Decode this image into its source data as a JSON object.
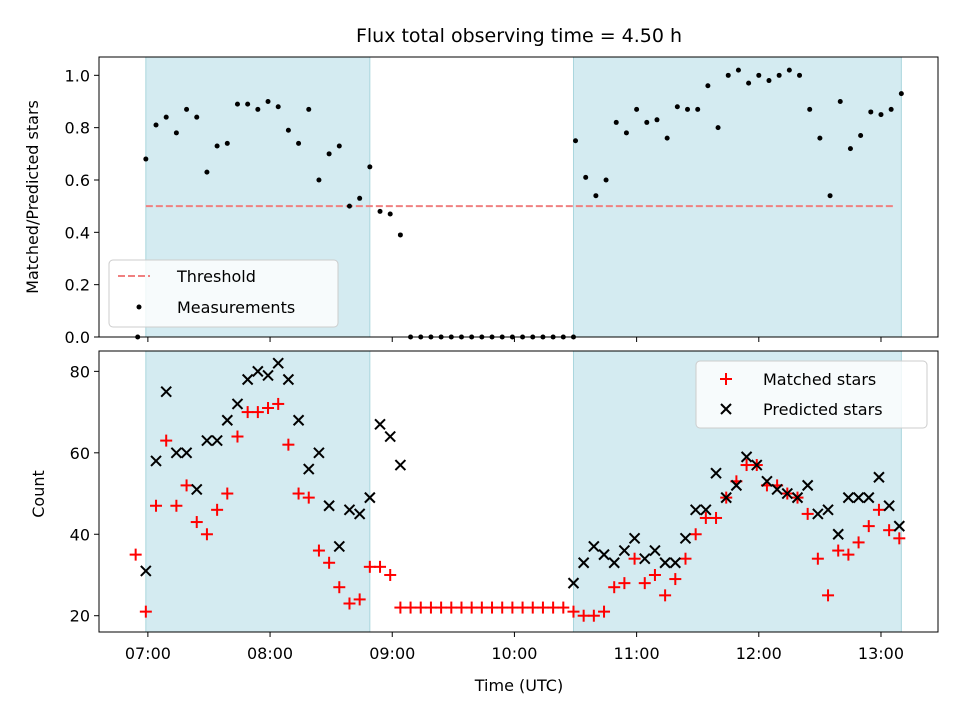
{
  "chart_data": [
    {
      "type": "scatter",
      "title": "Flux total observing time = 4.50 h",
      "xlabel": "",
      "ylabel": "Matched/Predicted stars",
      "xlim": [
        "06:36",
        "13:28"
      ],
      "ylim": [
        0,
        1.07
      ],
      "y_ticks": [
        "0.0",
        "0.2",
        "0.4",
        "0.6",
        "0.8",
        "1.0"
      ],
      "y_tick_values": [
        0,
        0.2,
        0.4,
        0.6,
        0.8,
        1.0
      ],
      "grid": false,
      "legend_position": "lower-left",
      "shaded_intervals": [
        [
          "06:59",
          "08:49"
        ],
        [
          "10:29",
          "13:10"
        ]
      ],
      "threshold": {
        "name": "Threshold",
        "y": 0.5,
        "x_range": [
          "06:59",
          "13:07"
        ],
        "color": "#f08080",
        "style": "dashed"
      },
      "series": [
        {
          "name": "Measurements",
          "marker": "dot",
          "color": "#000000",
          "points": [
            [
              "06:55",
              0.0
            ],
            [
              "06:59",
              0.68
            ],
            [
              "07:04",
              0.81
            ],
            [
              "07:09",
              0.84
            ],
            [
              "07:14",
              0.78
            ],
            [
              "07:19",
              0.87
            ],
            [
              "07:24",
              0.84
            ],
            [
              "07:29",
              0.63
            ],
            [
              "07:34",
              0.73
            ],
            [
              "07:39",
              0.74
            ],
            [
              "07:44",
              0.89
            ],
            [
              "07:49",
              0.89
            ],
            [
              "07:54",
              0.87
            ],
            [
              "07:59",
              0.9
            ],
            [
              "08:04",
              0.88
            ],
            [
              "08:09",
              0.79
            ],
            [
              "08:14",
              0.74
            ],
            [
              "08:19",
              0.87
            ],
            [
              "08:24",
              0.6
            ],
            [
              "08:29",
              0.7
            ],
            [
              "08:34",
              0.73
            ],
            [
              "08:39",
              0.5
            ],
            [
              "08:44",
              0.53
            ],
            [
              "08:49",
              0.65
            ],
            [
              "08:54",
              0.48
            ],
            [
              "08:59",
              0.47
            ],
            [
              "09:04",
              0.39
            ],
            [
              "09:09",
              0.0
            ],
            [
              "09:14",
              0.0
            ],
            [
              "09:19",
              0.0
            ],
            [
              "09:24",
              0.0
            ],
            [
              "09:29",
              0.0
            ],
            [
              "09:34",
              0.0
            ],
            [
              "09:39",
              0.0
            ],
            [
              "09:44",
              0.0
            ],
            [
              "09:49",
              0.0
            ],
            [
              "09:54",
              0.0
            ],
            [
              "09:59",
              0.0
            ],
            [
              "10:04",
              0.0
            ],
            [
              "10:09",
              0.0
            ],
            [
              "10:14",
              0.0
            ],
            [
              "10:19",
              0.0
            ],
            [
              "10:24",
              0.0
            ],
            [
              "10:29",
              0.0
            ],
            [
              "10:30",
              0.75
            ],
            [
              "10:35",
              0.61
            ],
            [
              "10:40",
              0.54
            ],
            [
              "10:45",
              0.6
            ],
            [
              "10:50",
              0.82
            ],
            [
              "10:55",
              0.78
            ],
            [
              "11:00",
              0.87
            ],
            [
              "11:05",
              0.82
            ],
            [
              "11:10",
              0.83
            ],
            [
              "11:15",
              0.76
            ],
            [
              "11:20",
              0.88
            ],
            [
              "11:25",
              0.87
            ],
            [
              "11:30",
              0.87
            ],
            [
              "11:35",
              0.96
            ],
            [
              "11:40",
              0.8
            ],
            [
              "11:45",
              1.0
            ],
            [
              "11:50",
              1.02
            ],
            [
              "11:55",
              0.97
            ],
            [
              "12:00",
              1.0
            ],
            [
              "12:05",
              0.98
            ],
            [
              "12:10",
              1.0
            ],
            [
              "12:15",
              1.02
            ],
            [
              "12:20",
              1.0
            ],
            [
              "12:25",
              0.87
            ],
            [
              "12:30",
              0.76
            ],
            [
              "12:35",
              0.54
            ],
            [
              "12:40",
              0.9
            ],
            [
              "12:45",
              0.72
            ],
            [
              "12:50",
              0.77
            ],
            [
              "12:55",
              0.86
            ],
            [
              "13:00",
              0.85
            ],
            [
              "13:05",
              0.87
            ],
            [
              "13:10",
              0.93
            ]
          ]
        }
      ]
    },
    {
      "type": "scatter",
      "title": "",
      "xlabel": "Time (UTC)",
      "ylabel": "Count",
      "xlim": [
        "06:36",
        "13:28"
      ],
      "ylim": [
        16,
        85
      ],
      "x_ticks": [
        "07:00",
        "08:00",
        "09:00",
        "10:00",
        "11:00",
        "12:00",
        "13:00"
      ],
      "y_ticks": [
        "20",
        "40",
        "60",
        "80"
      ],
      "y_tick_values": [
        20,
        40,
        60,
        80
      ],
      "grid": false,
      "legend_position": "upper-right",
      "shaded_intervals": [
        [
          "06:59",
          "08:49"
        ],
        [
          "10:29",
          "13:10"
        ]
      ],
      "series": [
        {
          "name": "Matched stars",
          "marker": "plus",
          "color": "#ff0000",
          "points": [
            [
              "06:54",
              35
            ],
            [
              "06:59",
              21
            ],
            [
              "07:04",
              47
            ],
            [
              "07:09",
              63
            ],
            [
              "07:14",
              47
            ],
            [
              "07:19",
              52
            ],
            [
              "07:24",
              43
            ],
            [
              "07:29",
              40
            ],
            [
              "07:34",
              46
            ],
            [
              "07:39",
              50
            ],
            [
              "07:44",
              64
            ],
            [
              "07:49",
              70
            ],
            [
              "07:54",
              70
            ],
            [
              "07:59",
              71
            ],
            [
              "08:04",
              72
            ],
            [
              "08:09",
              62
            ],
            [
              "08:14",
              50
            ],
            [
              "08:19",
              49
            ],
            [
              "08:24",
              36
            ],
            [
              "08:29",
              33
            ],
            [
              "08:34",
              27
            ],
            [
              "08:39",
              23
            ],
            [
              "08:44",
              24
            ],
            [
              "08:49",
              32
            ],
            [
              "08:54",
              32
            ],
            [
              "08:59",
              30
            ],
            [
              "09:04",
              22
            ],
            [
              "09:09",
              22
            ],
            [
              "09:14",
              22
            ],
            [
              "09:19",
              22
            ],
            [
              "09:24",
              22
            ],
            [
              "09:29",
              22
            ],
            [
              "09:34",
              22
            ],
            [
              "09:39",
              22
            ],
            [
              "09:44",
              22
            ],
            [
              "09:49",
              22
            ],
            [
              "09:54",
              22
            ],
            [
              "09:59",
              22
            ],
            [
              "10:04",
              22
            ],
            [
              "10:09",
              22
            ],
            [
              "10:14",
              22
            ],
            [
              "10:19",
              22
            ],
            [
              "10:24",
              22
            ],
            [
              "10:29",
              21
            ],
            [
              "10:34",
              20
            ],
            [
              "10:39",
              20
            ],
            [
              "10:44",
              21
            ],
            [
              "10:49",
              27
            ],
            [
              "10:54",
              28
            ],
            [
              "10:59",
              34
            ],
            [
              "11:04",
              28
            ],
            [
              "11:09",
              30
            ],
            [
              "11:14",
              25
            ],
            [
              "11:19",
              29
            ],
            [
              "11:24",
              34
            ],
            [
              "11:29",
              40
            ],
            [
              "11:34",
              44
            ],
            [
              "11:39",
              44
            ],
            [
              "11:44",
              49
            ],
            [
              "11:49",
              53
            ],
            [
              "11:54",
              57
            ],
            [
              "11:59",
              57
            ],
            [
              "12:04",
              52
            ],
            [
              "12:09",
              52
            ],
            [
              "12:14",
              50
            ],
            [
              "12:19",
              49
            ],
            [
              "12:24",
              45
            ],
            [
              "12:29",
              34
            ],
            [
              "12:34",
              25
            ],
            [
              "12:39",
              36
            ],
            [
              "12:44",
              35
            ],
            [
              "12:49",
              38
            ],
            [
              "12:54",
              42
            ],
            [
              "12:59",
              46
            ],
            [
              "13:04",
              41
            ],
            [
              "13:09",
              39
            ]
          ]
        },
        {
          "name": "Predicted stars",
          "marker": "x",
          "color": "#000000",
          "points": [
            [
              "06:59",
              31
            ],
            [
              "07:04",
              58
            ],
            [
              "07:09",
              75
            ],
            [
              "07:14",
              60
            ],
            [
              "07:19",
              60
            ],
            [
              "07:24",
              51
            ],
            [
              "07:29",
              63
            ],
            [
              "07:34",
              63
            ],
            [
              "07:39",
              68
            ],
            [
              "07:44",
              72
            ],
            [
              "07:49",
              78
            ],
            [
              "07:54",
              80
            ],
            [
              "07:59",
              79
            ],
            [
              "08:04",
              82
            ],
            [
              "08:09",
              78
            ],
            [
              "08:14",
              68
            ],
            [
              "08:19",
              56
            ],
            [
              "08:24",
              60
            ],
            [
              "08:29",
              47
            ],
            [
              "08:34",
              37
            ],
            [
              "08:39",
              46
            ],
            [
              "08:44",
              45
            ],
            [
              "08:49",
              49
            ],
            [
              "08:54",
              67
            ],
            [
              "08:59",
              64
            ],
            [
              "09:04",
              57
            ],
            [
              "10:29",
              28
            ],
            [
              "10:34",
              33
            ],
            [
              "10:39",
              37
            ],
            [
              "10:44",
              35
            ],
            [
              "10:49",
              33
            ],
            [
              "10:54",
              36
            ],
            [
              "10:59",
              39
            ],
            [
              "11:04",
              34
            ],
            [
              "11:09",
              36
            ],
            [
              "11:14",
              33
            ],
            [
              "11:19",
              33
            ],
            [
              "11:24",
              39
            ],
            [
              "11:29",
              46
            ],
            [
              "11:34",
              46
            ],
            [
              "11:39",
              55
            ],
            [
              "11:44",
              49
            ],
            [
              "11:49",
              52
            ],
            [
              "11:54",
              59
            ],
            [
              "11:59",
              57
            ],
            [
              "12:04",
              53
            ],
            [
              "12:09",
              51
            ],
            [
              "12:14",
              50
            ],
            [
              "12:19",
              49
            ],
            [
              "12:24",
              52
            ],
            [
              "12:29",
              45
            ],
            [
              "12:34",
              46
            ],
            [
              "12:39",
              40
            ],
            [
              "12:44",
              49
            ],
            [
              "12:49",
              49
            ],
            [
              "12:54",
              49
            ],
            [
              "12:59",
              54
            ],
            [
              "13:04",
              47
            ],
            [
              "13:09",
              42
            ]
          ]
        }
      ]
    }
  ],
  "colors": {
    "shade": "#d4ebf1",
    "shade_edge": "#a9d6dd",
    "threshold": "#f08080",
    "matched": "#ff0000",
    "predicted": "#000000"
  }
}
